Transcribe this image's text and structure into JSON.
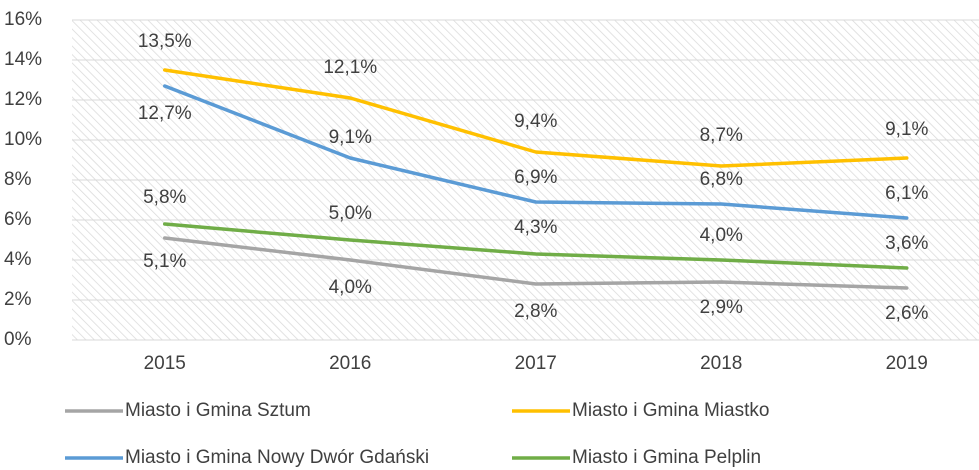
{
  "chart_data": {
    "type": "line",
    "categories": [
      "2015",
      "2016",
      "2017",
      "2018",
      "2019"
    ],
    "series": [
      {
        "name": "Miasto i Gmina Sztum",
        "color": "#a5a5a5",
        "values": [
          5.1,
          4.0,
          2.8,
          2.9,
          2.6
        ],
        "value_labels": [
          "5,1%",
          "4,0%",
          "2,8%",
          "2,9%",
          "2,6%"
        ]
      },
      {
        "name": "Miasto i Gmina Miastko",
        "color": "#ffc000",
        "values": [
          13.5,
          12.1,
          9.4,
          8.7,
          9.1
        ],
        "value_labels": [
          "13,5%",
          "12,1%",
          "9,4%",
          "8,7%",
          "9,1%"
        ]
      },
      {
        "name": "Miasto i Gmina Nowy Dwór Gdański",
        "color": "#5b9bd5",
        "values": [
          12.7,
          9.1,
          6.9,
          6.8,
          6.1
        ],
        "value_labels": [
          "12,7%",
          "9,1%",
          "6,9%",
          "6,8%",
          "6,1%"
        ]
      },
      {
        "name": "Miasto i Gmina Pelplin",
        "color": "#70ad47",
        "values": [
          5.8,
          5.0,
          4.3,
          4.0,
          3.6
        ],
        "value_labels": [
          "5,8%",
          "5,0%",
          "4,3%",
          "4,0%",
          "3,6%"
        ]
      }
    ],
    "ylim": [
      0,
      16
    ],
    "yticks": [
      {
        "value": 0,
        "label": "0%"
      },
      {
        "value": 2,
        "label": "2%"
      },
      {
        "value": 4,
        "label": "4%"
      },
      {
        "value": 6,
        "label": "6%"
      },
      {
        "value": 8,
        "label": "8%"
      },
      {
        "value": 10,
        "label": "10%"
      },
      {
        "value": 12,
        "label": "12%"
      },
      {
        "value": 14,
        "label": "14%"
      },
      {
        "value": 16,
        "label": "16%"
      }
    ],
    "grid": true,
    "legend": "bottom"
  }
}
